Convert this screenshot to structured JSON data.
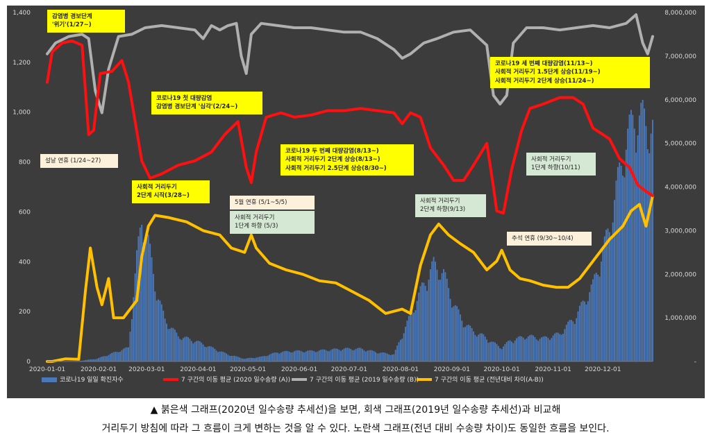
{
  "chart_data": {
    "type": "bar+line",
    "x_tick_labels": [
      "2020-01-01",
      "2020-02-01",
      "2020-03-01",
      "2020-04-01",
      "2020-05-01",
      "2020-06-01",
      "2020-07-01",
      "2020-08-01",
      "2020-09-01",
      "2020-10-01",
      "2020-11-01",
      "2020-12-01"
    ],
    "y_left_ticks": [
      "0",
      "200",
      "400",
      "600",
      "800",
      "1,000",
      "1,200",
      "1,400"
    ],
    "y_left_lim": [
      0,
      1400
    ],
    "y_right_ticks": [
      "-",
      "1,000,000",
      "2,000,000",
      "3,000,000",
      "4,000,000",
      "5,000,000",
      "6,000,000",
      "7,000,000",
      "8,000,000"
    ],
    "y_right_lim": [
      0,
      8000000
    ],
    "bars": {
      "name": "코로나19 일일 확진자수",
      "axis": "left",
      "color": "#4a78b8",
      "points": [
        [
          1,
          0
        ],
        [
          20,
          2
        ],
        [
          31,
          12
        ],
        [
          50,
          60
        ],
        [
          55,
          450
        ],
        [
          58,
          610
        ],
        [
          62,
          520
        ],
        [
          66,
          330
        ],
        [
          72,
          180
        ],
        [
          80,
          110
        ],
        [
          90,
          90
        ],
        [
          100,
          60
        ],
        [
          110,
          30
        ],
        [
          120,
          12
        ],
        [
          130,
          20
        ],
        [
          140,
          40
        ],
        [
          150,
          45
        ],
        [
          160,
          45
        ],
        [
          170,
          50
        ],
        [
          180,
          55
        ],
        [
          190,
          55
        ],
        [
          200,
          40
        ],
        [
          210,
          30
        ],
        [
          220,
          200
        ],
        [
          227,
          320
        ],
        [
          234,
          420
        ],
        [
          240,
          380
        ],
        [
          246,
          250
        ],
        [
          252,
          170
        ],
        [
          258,
          130
        ],
        [
          264,
          110
        ],
        [
          270,
          80
        ],
        [
          275,
          60
        ],
        [
          280,
          90
        ],
        [
          290,
          110
        ],
        [
          300,
          100
        ],
        [
          310,
          120
        ],
        [
          320,
          200
        ],
        [
          330,
          330
        ],
        [
          340,
          580
        ],
        [
          345,
          780
        ],
        [
          350,
          950
        ],
        [
          355,
          1060
        ],
        [
          360,
          1050
        ],
        [
          366,
          1000
        ]
      ]
    },
    "series": [
      {
        "name": "7 구간의 이동 평균 (2020 일수송량 (A))",
        "axis": "right",
        "color": "#ff1010",
        "points": [
          [
            1,
            6400000
          ],
          [
            4,
            7100000
          ],
          [
            10,
            7300000
          ],
          [
            16,
            7350000
          ],
          [
            22,
            7250000
          ],
          [
            26,
            5200000
          ],
          [
            29,
            5300000
          ],
          [
            33,
            6600000
          ],
          [
            40,
            6650000
          ],
          [
            46,
            6900000
          ],
          [
            50,
            6400000
          ],
          [
            58,
            4600000
          ],
          [
            63,
            4200000
          ],
          [
            70,
            4300000
          ],
          [
            80,
            4500000
          ],
          [
            90,
            4600000
          ],
          [
            100,
            4800000
          ],
          [
            108,
            5200000
          ],
          [
            116,
            5500000
          ],
          [
            121,
            4450000
          ],
          [
            124,
            4100000
          ],
          [
            127,
            4800000
          ],
          [
            133,
            5600000
          ],
          [
            142,
            5700000
          ],
          [
            150,
            5600000
          ],
          [
            160,
            5650000
          ],
          [
            170,
            5750000
          ],
          [
            180,
            5750000
          ],
          [
            190,
            5800000
          ],
          [
            200,
            5750000
          ],
          [
            210,
            5700000
          ],
          [
            215,
            5450000
          ],
          [
            220,
            5700000
          ],
          [
            226,
            5600000
          ],
          [
            232,
            4900000
          ],
          [
            240,
            4500000
          ],
          [
            246,
            4150000
          ],
          [
            252,
            4150000
          ],
          [
            258,
            4500000
          ],
          [
            266,
            5000000
          ],
          [
            270,
            4000000
          ],
          [
            272,
            3450000
          ],
          [
            276,
            3400000
          ],
          [
            281,
            4400000
          ],
          [
            287,
            5300000
          ],
          [
            292,
            5800000
          ],
          [
            300,
            5900000
          ],
          [
            310,
            6050000
          ],
          [
            318,
            6050000
          ],
          [
            324,
            5900000
          ],
          [
            330,
            5350000
          ],
          [
            340,
            5100000
          ],
          [
            346,
            4650000
          ],
          [
            352,
            4450000
          ],
          [
            357,
            4050000
          ],
          [
            362,
            3900000
          ],
          [
            366,
            3800000
          ]
        ]
      },
      {
        "name": "7 구간의 이동 평균 (2019 일수송량 (B))",
        "axis": "right",
        "color": "#b0b0b0",
        "points": [
          [
            1,
            7050000
          ],
          [
            6,
            7300000
          ],
          [
            14,
            7450000
          ],
          [
            22,
            7500000
          ],
          [
            26,
            7400000
          ],
          [
            30,
            6200000
          ],
          [
            34,
            5700000
          ],
          [
            38,
            6700000
          ],
          [
            44,
            7450000
          ],
          [
            52,
            7500000
          ],
          [
            60,
            7650000
          ],
          [
            70,
            7700000
          ],
          [
            80,
            7650000
          ],
          [
            90,
            7600000
          ],
          [
            95,
            7400000
          ],
          [
            100,
            7700000
          ],
          [
            105,
            7600000
          ],
          [
            110,
            7700000
          ],
          [
            115,
            7750000
          ],
          [
            118,
            7000000
          ],
          [
            121,
            6600000
          ],
          [
            124,
            7500000
          ],
          [
            130,
            7750000
          ],
          [
            140,
            7700000
          ],
          [
            150,
            7650000
          ],
          [
            160,
            7650000
          ],
          [
            170,
            7600000
          ],
          [
            180,
            7550000
          ],
          [
            190,
            7550000
          ],
          [
            200,
            7400000
          ],
          [
            210,
            7150000
          ],
          [
            215,
            6950000
          ],
          [
            220,
            7050000
          ],
          [
            228,
            7300000
          ],
          [
            236,
            7400000
          ],
          [
            246,
            7550000
          ],
          [
            256,
            7600000
          ],
          [
            266,
            7250000
          ],
          [
            270,
            6100000
          ],
          [
            274,
            5900000
          ],
          [
            278,
            6100000
          ],
          [
            282,
            7300000
          ],
          [
            290,
            7650000
          ],
          [
            300,
            7650000
          ],
          [
            310,
            7600000
          ],
          [
            320,
            7650000
          ],
          [
            330,
            7700000
          ],
          [
            340,
            7650000
          ],
          [
            350,
            7750000
          ],
          [
            356,
            7950000
          ],
          [
            360,
            7300000
          ],
          [
            363,
            7050000
          ],
          [
            366,
            7450000
          ]
        ]
      },
      {
        "name": "7 구간의 이동 평균 (전년대비 차이(A-B))",
        "axis": "right",
        "color": "#ffc000",
        "points": [
          [
            1,
            0
          ],
          [
            4,
            0
          ],
          [
            12,
            60000
          ],
          [
            20,
            50000
          ],
          [
            24,
            1600000
          ],
          [
            27,
            2600000
          ],
          [
            31,
            1700000
          ],
          [
            34,
            1300000
          ],
          [
            38,
            1900000
          ],
          [
            41,
            1000000
          ],
          [
            47,
            1000000
          ],
          [
            55,
            1400000
          ],
          [
            58,
            2400000
          ],
          [
            62,
            3100000
          ],
          [
            66,
            3350000
          ],
          [
            74,
            3300000
          ],
          [
            85,
            3200000
          ],
          [
            95,
            3000000
          ],
          [
            105,
            2900000
          ],
          [
            112,
            2600000
          ],
          [
            120,
            2500000
          ],
          [
            124,
            2900000
          ],
          [
            127,
            2600000
          ],
          [
            135,
            2250000
          ],
          [
            145,
            2100000
          ],
          [
            155,
            2000000
          ],
          [
            165,
            1850000
          ],
          [
            175,
            1800000
          ],
          [
            185,
            1600000
          ],
          [
            195,
            1400000
          ],
          [
            205,
            1100000
          ],
          [
            215,
            1200000
          ],
          [
            220,
            1100000
          ],
          [
            226,
            2200000
          ],
          [
            232,
            2900000
          ],
          [
            237,
            3150000
          ],
          [
            243,
            2900000
          ],
          [
            250,
            2700000
          ],
          [
            258,
            2500000
          ],
          [
            266,
            2100000
          ],
          [
            272,
            2300000
          ],
          [
            275,
            2550000
          ],
          [
            280,
            2100000
          ],
          [
            286,
            1900000
          ],
          [
            292,
            1850000
          ],
          [
            300,
            1750000
          ],
          [
            308,
            1700000
          ],
          [
            315,
            1700000
          ],
          [
            322,
            1900000
          ],
          [
            330,
            2300000
          ],
          [
            340,
            2800000
          ],
          [
            348,
            3100000
          ],
          [
            353,
            3450000
          ],
          [
            358,
            3600000
          ],
          [
            362,
            3100000
          ],
          [
            366,
            3800000
          ]
        ]
      }
    ],
    "legend": [
      {
        "label": "코로나19 일일 확진자수",
        "color": "#4a78b8",
        "kind": "bar"
      },
      {
        "label": "7 구간의 이동 평균 (2020 일수송량 (A))",
        "color": "#ff1010",
        "kind": "line"
      },
      {
        "label": "7 구간의 이동 평균 (2019 일수송량 (B))",
        "color": "#b0b0b0",
        "kind": "line"
      },
      {
        "label": "7 구간의 이동 평균 (전년대비 차이(A-B))",
        "color": "#ffc000",
        "kind": "line"
      }
    ],
    "legend_position": "bottom",
    "grid": false,
    "background": "#3c3c3c",
    "annotations": [
      {
        "style": "yellow",
        "lines": [
          "감염병 경보단계",
          "'위기'(1/27~)"
        ]
      },
      {
        "style": "beige",
        "lines": [
          "설날 연휴 (1/24~27)"
        ]
      },
      {
        "style": "yellow",
        "lines": [
          "코로나19 첫 대량감염",
          "감염병 경보단계 '심각'(2/24~)"
        ]
      },
      {
        "style": "yellow",
        "lines": [
          "사회적 거리두기",
          "2단계 시작(3/28~)"
        ]
      },
      {
        "style": "beige",
        "lines": [
          "5월 연휴 (5/1~5/5)"
        ]
      },
      {
        "style": "green",
        "lines": [
          "사회적 거리두기",
          "1단계 하향 (5/3)"
        ]
      },
      {
        "style": "yellow",
        "lines": [
          "코로나19 두 번째 대량감염(8/13~)",
          "사회적 거리두기 2단계 상승(8/13~)",
          "사회적 거리두기 2.5단계 상승(8/30~)"
        ]
      },
      {
        "style": "green",
        "lines": [
          "사회적 거리두기",
          "2단계 하향(9/13)"
        ]
      },
      {
        "style": "beige",
        "lines": [
          "추석 연휴 (9/30~10/4)"
        ]
      },
      {
        "style": "green",
        "lines": [
          "사회적 거리두기",
          "1단계 하향(10/11)"
        ]
      },
      {
        "style": "yellow",
        "lines": [
          "코로나19 세 번째 대량감염(11/13~)",
          "사회적 거리두기 1.5단계 상승(11/19~)",
          "사회적 거리두기 2단계 상승(11/24~)"
        ]
      }
    ]
  },
  "caption": {
    "line1": "▲ 붉은색 그래프(2020년 일수송량 추세선)을 보면, 회색 그래프(2019년 일수송량 추세선)과 비교해",
    "line2": "거리두기 방침에 따라 그 흐름이 크게 변하는 것을 알 수 있다.   노란색 그래프(전년 대비 수송량 차이)도 동일한 흐름을 보인다."
  }
}
